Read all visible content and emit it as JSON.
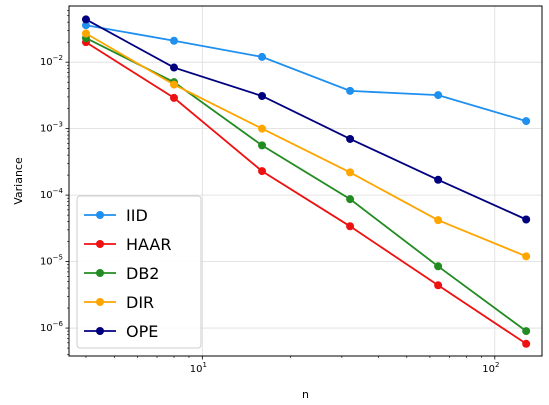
{
  "chart_data": {
    "type": "line",
    "xlabel": "n",
    "ylabel": "Variance",
    "xscale": "log",
    "yscale": "log",
    "xlim": [
      3.5,
      145
    ],
    "ylim": [
      3.8e-07,
      0.07
    ],
    "grid": true,
    "legend_position": "lower-left",
    "x_tick_labels": [
      {
        "value": 10,
        "base": "10",
        "exp": "1"
      },
      {
        "value": 100,
        "base": "10",
        "exp": "2"
      }
    ],
    "y_tick_labels": [
      {
        "value": 1e-06,
        "base": "10",
        "exp": "−6"
      },
      {
        "value": 1e-05,
        "base": "10",
        "exp": "−5"
      },
      {
        "value": 0.0001,
        "base": "10",
        "exp": "−4"
      },
      {
        "value": 0.001,
        "base": "10",
        "exp": "−3"
      },
      {
        "value": 0.01,
        "base": "10",
        "exp": "−2"
      }
    ],
    "x": [
      4,
      8,
      16,
      32,
      64,
      128
    ],
    "series": [
      {
        "name": "IID",
        "color": "#1f8ff0",
        "values": [
          0.036,
          0.021,
          0.012,
          0.0037,
          0.0032,
          0.0013
        ]
      },
      {
        "name": "HAAR",
        "color": "#ee1111",
        "values": [
          0.02,
          0.0029,
          0.00023,
          3.4e-05,
          4.4e-06,
          5.8e-07
        ]
      },
      {
        "name": "DB2",
        "color": "#228b22",
        "values": [
          0.023,
          0.005,
          0.00056,
          8.7e-05,
          8.5e-06,
          9e-07
        ]
      },
      {
        "name": "DIR",
        "color": "#ffa500",
        "values": [
          0.027,
          0.0046,
          0.001,
          0.00022,
          4.2e-05,
          1.2e-05
        ]
      },
      {
        "name": "OPE",
        "color": "#00007f",
        "values": [
          0.044,
          0.0083,
          0.0031,
          0.0007,
          0.00017,
          4.3e-05
        ]
      }
    ]
  }
}
